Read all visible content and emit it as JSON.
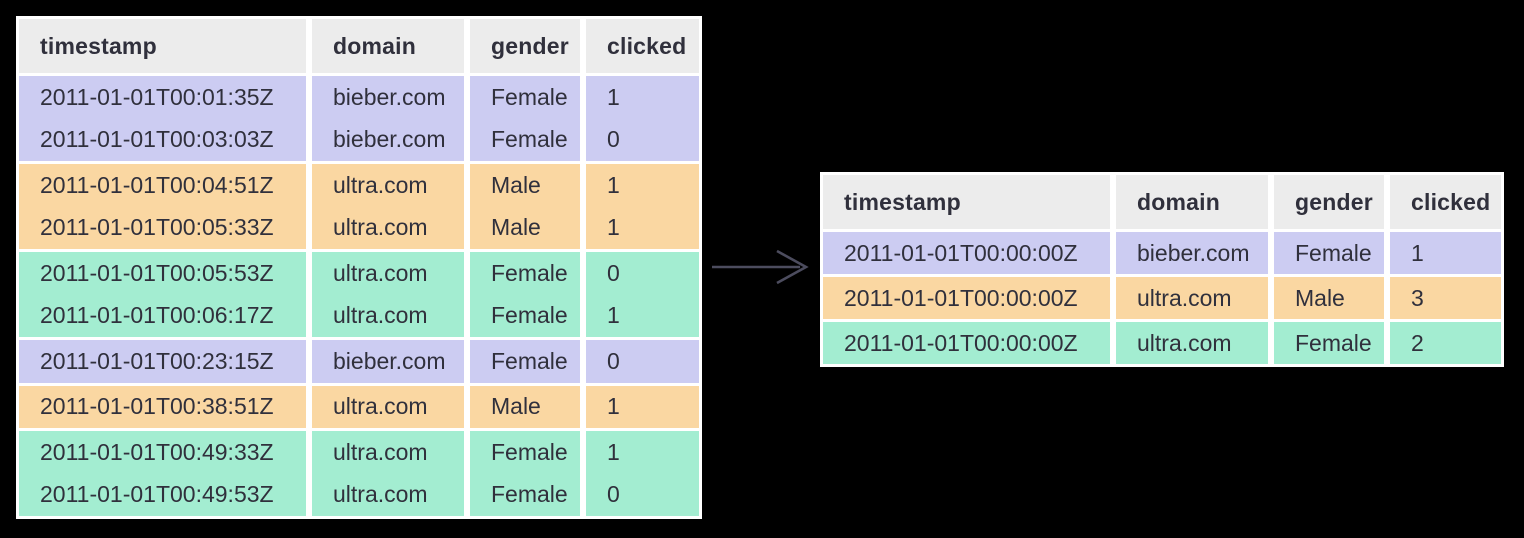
{
  "colors": {
    "background": "#000000",
    "separator": "#ffffff",
    "header_bg": "#ececec",
    "text": "#30303c",
    "arrow": "#4c4c5e",
    "group_lavender": "#ccccf2",
    "group_orange": "#fad7a2",
    "group_green": "#a3edd1"
  },
  "arrow": {
    "icon": "right-arrow"
  },
  "left_table": {
    "columns": [
      "timestamp",
      "domain",
      "gender",
      "clicked"
    ],
    "rows": [
      {
        "group": "lavender",
        "cells": [
          "2011-01-01T00:01:35Z",
          "bieber.com",
          "Female",
          "1"
        ]
      },
      {
        "group": "lavender",
        "cells": [
          "2011-01-01T00:03:03Z",
          "bieber.com",
          "Female",
          "0"
        ]
      },
      {
        "group": "orange",
        "cells": [
          "2011-01-01T00:04:51Z",
          "ultra.com",
          "Male",
          "1"
        ]
      },
      {
        "group": "orange",
        "cells": [
          "2011-01-01T00:05:33Z",
          "ultra.com",
          "Male",
          "1"
        ]
      },
      {
        "group": "green",
        "cells": [
          "2011-01-01T00:05:53Z",
          "ultra.com",
          "Female",
          "0"
        ]
      },
      {
        "group": "green",
        "cells": [
          "2011-01-01T00:06:17Z",
          "ultra.com",
          "Female",
          "1"
        ]
      },
      {
        "group": "lavender",
        "cells": [
          "2011-01-01T00:23:15Z",
          "bieber.com",
          "Female",
          "0"
        ]
      },
      {
        "group": "orange",
        "cells": [
          "2011-01-01T00:38:51Z",
          "ultra.com",
          "Male",
          "1"
        ]
      },
      {
        "group": "green",
        "cells": [
          "2011-01-01T00:49:33Z",
          "ultra.com",
          "Female",
          "1"
        ]
      },
      {
        "group": "green",
        "cells": [
          "2011-01-01T00:49:53Z",
          "ultra.com",
          "Female",
          "0"
        ]
      }
    ]
  },
  "right_table": {
    "columns": [
      "timestamp",
      "domain",
      "gender",
      "clicked"
    ],
    "rows": [
      {
        "group": "lavender",
        "cells": [
          "2011-01-01T00:00:00Z",
          "bieber.com",
          "Female",
          "1"
        ]
      },
      {
        "group": "orange",
        "cells": [
          "2011-01-01T00:00:00Z",
          "ultra.com",
          "Male",
          "3"
        ]
      },
      {
        "group": "green",
        "cells": [
          "2011-01-01T00:00:00Z",
          "ultra.com",
          "Female",
          "2"
        ]
      }
    ]
  }
}
